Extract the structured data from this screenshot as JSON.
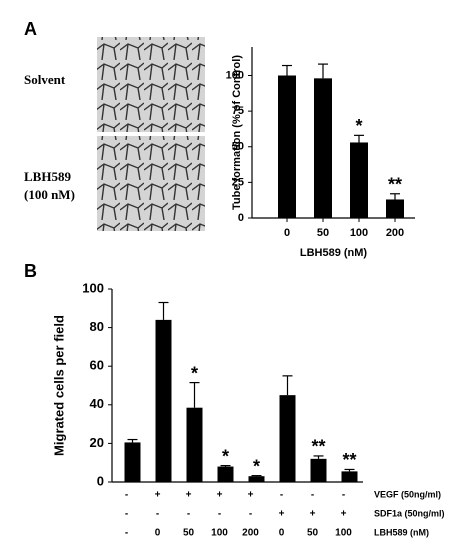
{
  "images": [
    {
      "lines": [
        "Solvent"
      ]
    },
    {
      "lines": [
        "LBH589",
        "(100 nM)"
      ]
    }
  ],
  "chart_data": [
    {
      "type": "bar",
      "panel": "A",
      "x_label": "LBH589 (nM)",
      "y_label": "Tube formation (% of Control)",
      "categories": [
        "0",
        "50",
        "100",
        "200"
      ],
      "values": [
        100,
        98,
        53,
        13
      ],
      "errors": [
        7,
        10,
        5,
        4
      ],
      "significance": [
        null,
        null,
        "*",
        "**"
      ],
      "color": "#000000",
      "ylim": [
        0,
        120
      ],
      "yticks": [
        0,
        25,
        50,
        75,
        100
      ]
    },
    {
      "type": "bar",
      "panel": "B",
      "y_label": "Migrated cells per field",
      "values": [
        20.5,
        84,
        38.5,
        8,
        3,
        45,
        12,
        5.5
      ],
      "errors": [
        1.5,
        9,
        13,
        0.5,
        0.3,
        10,
        1.5,
        1
      ],
      "significance": [
        null,
        null,
        "*",
        "*",
        "*",
        null,
        "**",
        "**"
      ],
      "color": "#000000",
      "ylim": [
        0,
        100
      ],
      "yticks": [
        0,
        20,
        40,
        60,
        80,
        100
      ],
      "table_rows": [
        {
          "label": "VEGF (50ng/ml)",
          "cells": [
            "-",
            "+",
            "+",
            "+",
            "+",
            "-",
            "-",
            "-"
          ]
        },
        {
          "label": "SDF1a (50ng/ml)",
          "cells": [
            "-",
            "-",
            "-",
            "-",
            "-",
            "+",
            "+",
            "+"
          ]
        },
        {
          "label": "LBH589 (nM)",
          "cells": [
            "-",
            "0",
            "50",
            "100",
            "200",
            "0",
            "50",
            "100"
          ]
        }
      ]
    }
  ]
}
